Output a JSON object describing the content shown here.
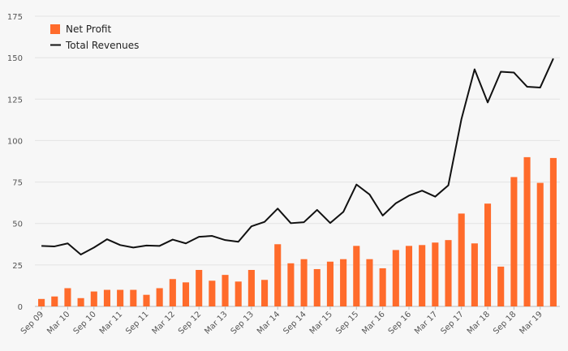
{
  "chart_data": {
    "type": "bar",
    "title": "",
    "xlabel": "",
    "ylabel": "",
    "ylim": [
      0,
      175
    ],
    "yticks": [
      0,
      25,
      50,
      75,
      100,
      125,
      150,
      175
    ],
    "grid": true,
    "legend_position": "top-left",
    "colors": {
      "bar": "#ff6b2b",
      "line": "#111111",
      "grid": "#e3e3e3",
      "axis": "#bbbbbb"
    },
    "x_tick_labels": [
      "Sep 09",
      "Mar 10",
      "Sep 10",
      "Mar 11",
      "Sep 11",
      "Mar 12",
      "Sep 12",
      "Mar 13",
      "Sep 13",
      "Mar 14",
      "Sep 14",
      "Mar 15",
      "Sep 15",
      "Mar 16",
      "Sep 16",
      "Mar 17",
      "Sep 17",
      "Mar 18",
      "Sep 18",
      "Mar 19"
    ],
    "series": [
      {
        "name": "Net Profit",
        "kind": "bar",
        "values": [
          4.5,
          6,
          11,
          5,
          9,
          10,
          10,
          10,
          7,
          11,
          16.5,
          14.5,
          22,
          15.5,
          19,
          15,
          22,
          16,
          37.5,
          26,
          28.5,
          22.5,
          27,
          28.5,
          36.5,
          28.5,
          23,
          34,
          36.5,
          37,
          38.5,
          40,
          56,
          38,
          62,
          24,
          78,
          90,
          74.5,
          89.5
        ]
      },
      {
        "name": "Total Revenues",
        "kind": "line",
        "values": [
          36.5,
          36.2,
          38,
          31.3,
          35.5,
          40.5,
          37,
          35.5,
          36.7,
          36.5,
          40.3,
          38,
          42,
          42.5,
          40,
          39,
          48.3,
          51,
          59,
          50.2,
          50.8,
          58.2,
          50.3,
          57,
          73.5,
          67.5,
          54.8,
          62.2,
          66.8,
          69.8,
          66.2,
          73,
          113,
          143,
          123,
          141.5,
          141,
          132.5,
          132,
          149.5
        ]
      }
    ]
  }
}
